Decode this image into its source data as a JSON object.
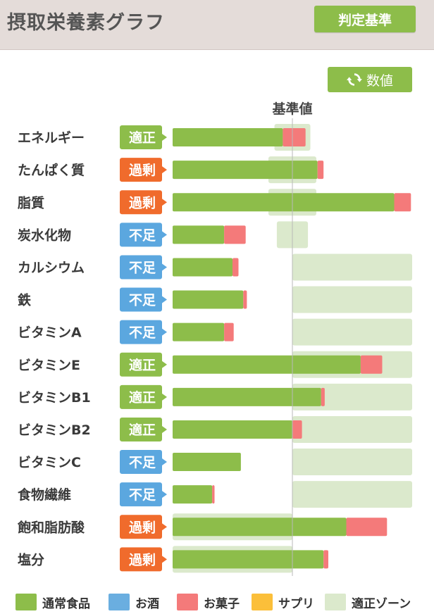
{
  "header": {
    "title": "摂取栄養素グラフ",
    "criteria_button": "判定基準"
  },
  "toolbar": {
    "value_button": "数値",
    "value_icon": "refresh-icon"
  },
  "colors": {
    "food": "#8dbd4a",
    "alcohol": "#6aaee0",
    "snacks": "#f47a7a",
    "supplement": "#fbbf3a",
    "zone": "#dbe9cc",
    "badge_ok": "#8dbd4a",
    "badge_over": "#f06b2c",
    "badge_under": "#5ba7df"
  },
  "chart_data": {
    "type": "bar",
    "orientation": "horizontal",
    "stacked": true,
    "reference_label": "基準値",
    "reference_value": 100,
    "unit": "%",
    "xlim": [
      0,
      200
    ],
    "categories": [
      "エネルギー",
      "たんぱく質",
      "脂質",
      "炭水化物",
      "カルシウム",
      "鉄",
      "ビタミンA",
      "ビタミンE",
      "ビタミンB1",
      "ビタミンB2",
      "ビタミンC",
      "食物繊維",
      "飽和脂肪酸",
      "塩分"
    ],
    "status": [
      "適正",
      "過剰",
      "過剰",
      "不足",
      "不足",
      "不足",
      "不足",
      "適正",
      "適正",
      "適正",
      "不足",
      "不足",
      "過剰",
      "過剰"
    ],
    "status_type": [
      "ok",
      "over",
      "over",
      "under",
      "under",
      "under",
      "under",
      "ok",
      "ok",
      "ok",
      "under",
      "under",
      "over",
      "over"
    ],
    "series": [
      {
        "name": "通常食品",
        "values": [
          92,
          121,
          185,
          43,
          50,
          59,
          43,
          157,
          124,
          100,
          57,
          33,
          145,
          126
        ]
      },
      {
        "name": "お酒",
        "values": [
          0,
          0,
          0,
          0,
          0,
          0,
          0,
          0,
          0,
          0,
          0,
          0,
          0,
          0
        ]
      },
      {
        "name": "お菓子",
        "values": [
          19,
          5,
          14,
          18,
          5,
          3,
          8,
          18,
          3,
          8,
          0,
          2,
          34,
          4
        ]
      },
      {
        "name": "サプリ",
        "values": [
          0,
          0,
          0,
          0,
          0,
          0,
          0,
          0,
          0,
          0,
          0,
          0,
          0,
          0
        ]
      }
    ],
    "zone_min": [
      85,
      80,
      80,
      87,
      100,
      100,
      100,
      100,
      100,
      100,
      100,
      100,
      0,
      0
    ],
    "zone_max": [
      115,
      120,
      120,
      113,
      200,
      200,
      200,
      200,
      200,
      200,
      200,
      200,
      100,
      100
    ],
    "legend": [
      "通常食品",
      "お酒",
      "お菓子",
      "サプリ",
      "適正ゾーン"
    ]
  }
}
